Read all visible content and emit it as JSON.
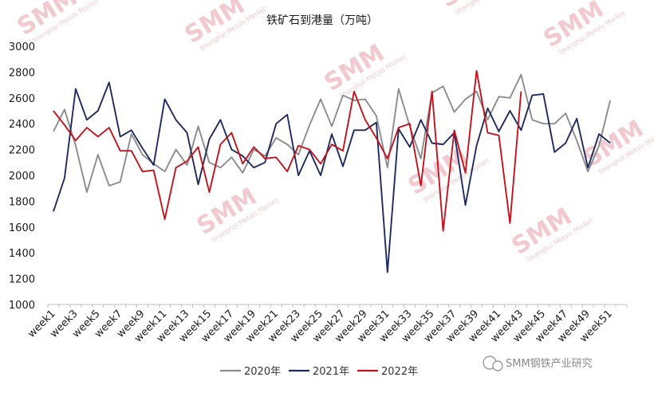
{
  "chart_data": {
    "type": "line",
    "title": "铁矿石到港量（万吨）",
    "xlabel": "",
    "ylabel": "",
    "ylim": [
      1000,
      3000
    ],
    "yticks": [
      1000,
      1200,
      1400,
      1600,
      1800,
      2000,
      2200,
      2400,
      2600,
      2800,
      3000
    ],
    "grid": false,
    "legend_position": "bottom",
    "categories": [
      "week1",
      "week2",
      "week3",
      "week4",
      "week5",
      "week6",
      "week7",
      "week8",
      "week9",
      "week10",
      "week11",
      "week12",
      "week13",
      "week14",
      "week15",
      "week16",
      "week17",
      "week18",
      "week19",
      "week20",
      "week21",
      "week22",
      "week23",
      "week24",
      "week25",
      "week26",
      "week27",
      "week28",
      "week29",
      "week30",
      "week31",
      "week32",
      "week33",
      "week34",
      "week35",
      "week36",
      "week37",
      "week38",
      "week39",
      "week40",
      "week41",
      "week42",
      "week43",
      "week44",
      "week45",
      "week46",
      "week47",
      "week48",
      "week49",
      "week50",
      "week51",
      "week52"
    ],
    "tick_labels": [
      "week1",
      "week3",
      "week5",
      "week7",
      "week9",
      "week11",
      "week13",
      "week15",
      "week17",
      "week19",
      "week21",
      "week23",
      "week25",
      "week27",
      "week29",
      "week31",
      "week33",
      "week35",
      "week37",
      "week39",
      "week41",
      "week43",
      "week45",
      "week47",
      "week49",
      "week51"
    ],
    "series": [
      {
        "name": "2020年",
        "color": "#8c8c8c",
        "values": [
          2340,
          2510,
          2230,
          1870,
          2160,
          1920,
          1950,
          2320,
          2160,
          2090,
          2030,
          2200,
          2080,
          2380,
          2100,
          2060,
          2140,
          2020,
          2200,
          2150,
          2290,
          2240,
          2160,
          2390,
          2590,
          2380,
          2620,
          2580,
          2590,
          2460,
          2060,
          2670,
          2380,
          2130,
          2640,
          2690,
          2490,
          2590,
          2650,
          2430,
          2610,
          2600,
          2780,
          2430,
          2400,
          2400,
          2480,
          2270,
          2030,
          2230,
          2580,
          null
        ]
      },
      {
        "name": "2021年",
        "color": "#1f2a5e",
        "values": [
          1720,
          1980,
          2670,
          2430,
          2500,
          2720,
          2300,
          2350,
          2210,
          2080,
          2590,
          2430,
          2330,
          1930,
          2280,
          2430,
          2200,
          2150,
          2060,
          2100,
          2400,
          2470,
          2000,
          2190,
          2000,
          2320,
          2070,
          2350,
          2350,
          2410,
          1250,
          2360,
          2220,
          2430,
          2250,
          2240,
          2330,
          1770,
          2230,
          2520,
          2340,
          2500,
          2350,
          2620,
          2630,
          2180,
          2250,
          2440,
          2060,
          2320,
          2250,
          null
        ]
      },
      {
        "name": "2022年",
        "color": "#c0141f",
        "values": [
          2500,
          2390,
          2270,
          2370,
          2300,
          2370,
          2190,
          2190,
          2030,
          2040,
          1660,
          2060,
          2110,
          2220,
          1870,
          2240,
          2330,
          2090,
          2220,
          2130,
          2140,
          2030,
          2230,
          2200,
          2090,
          2240,
          2190,
          2650,
          2430,
          2290,
          2130,
          2370,
          2400,
          1920,
          2650,
          1570,
          2350,
          2020,
          2810,
          2330,
          2310,
          1630,
          2650,
          null,
          null,
          null,
          null,
          null,
          null,
          null,
          null,
          null
        ]
      }
    ]
  },
  "legend": {
    "items": [
      "2020年",
      "2021年",
      "2022年"
    ]
  },
  "watermark": {
    "brand": "SMM",
    "sub": "Shanghai Metals Market"
  },
  "source": "SMM钢铁产业研究"
}
